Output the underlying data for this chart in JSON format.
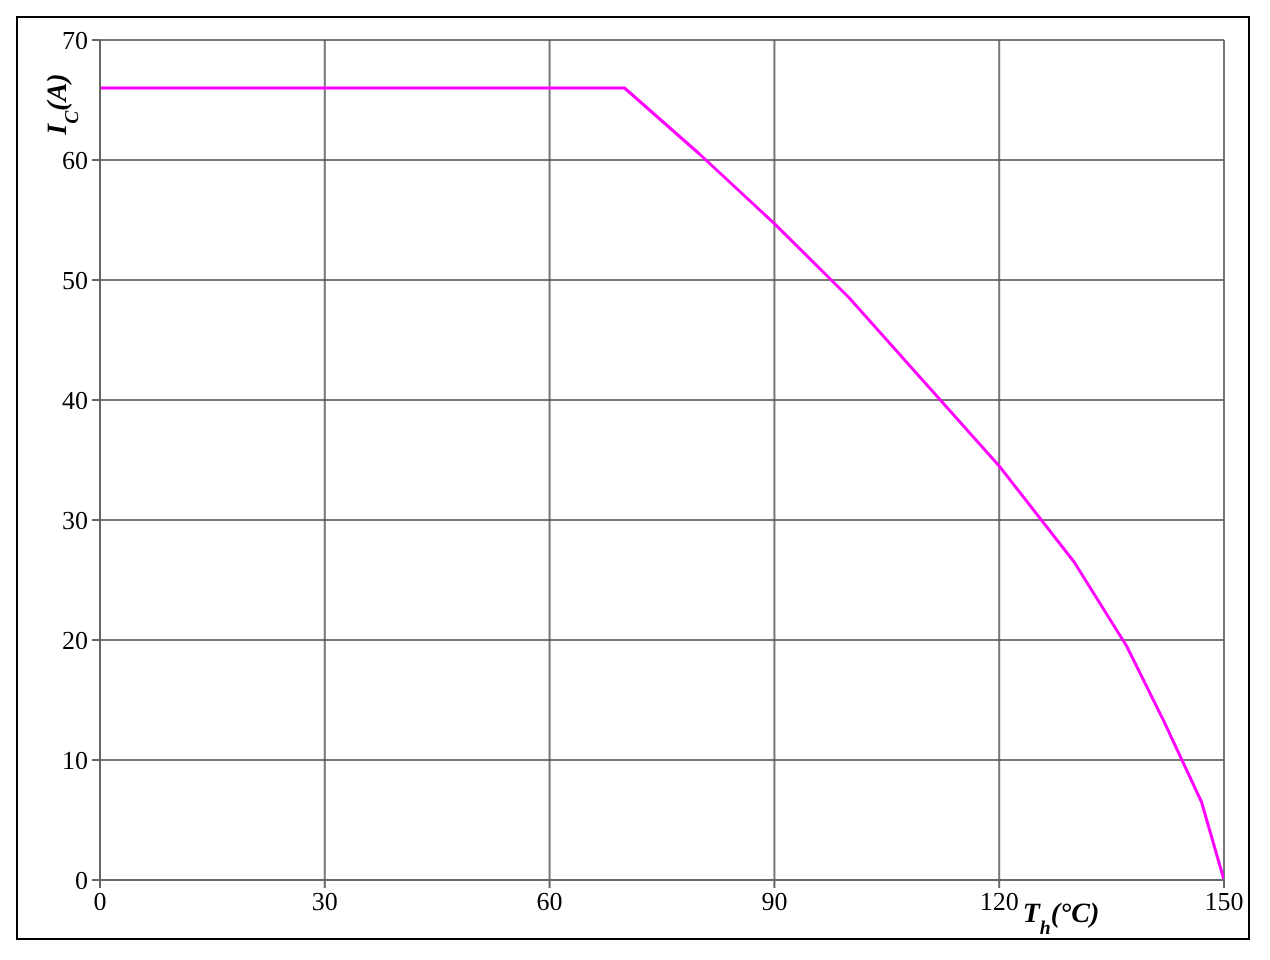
{
  "chart_data": {
    "type": "line",
    "xlabel": "T$_{h}$(°C)",
    "ylabel": "I$_{C}$(A)",
    "series": [
      {
        "color": "#ff00ff",
        "x": [
          0,
          70,
          80,
          90,
          100,
          110,
          120,
          130,
          137,
          142,
          147,
          150
        ],
        "values": [
          66,
          66,
          60.5,
          54.7,
          48.5,
          41.5,
          34.5,
          26.5,
          19.5,
          13.2,
          6.5,
          0
        ]
      }
    ],
    "xlim": [
      0,
      150
    ],
    "xticks": [
      0,
      30,
      60,
      90,
      120,
      150
    ],
    "ylim": [
      0,
      70
    ],
    "yticks": [
      0,
      10,
      20,
      30,
      40,
      50,
      60,
      70
    ],
    "grid": true,
    "marker": "none",
    "line_style": "solid"
  }
}
